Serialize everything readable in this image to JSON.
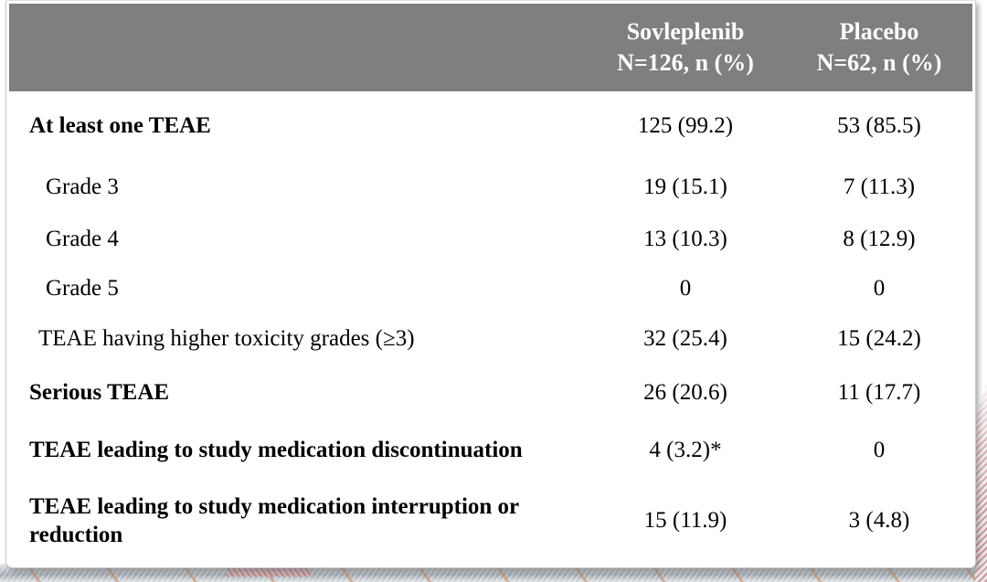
{
  "header": {
    "sovleplenib_line1": "Sovleplenib",
    "sovleplenib_line2": "N=126, n (%)",
    "placebo_line1": "Placebo",
    "placebo_line2": "N=62, n (%)"
  },
  "rows": [
    {
      "label": "At least one TEAE",
      "sovleplenib": "125 (99.2)",
      "placebo": "53 (85.5)"
    },
    {
      "label": "Grade 3",
      "sovleplenib": "19 (15.1)",
      "placebo": "7 (11.3)"
    },
    {
      "label": "Grade 4",
      "sovleplenib": "13 (10.3)",
      "placebo": "8 (12.9)"
    },
    {
      "label": "Grade 5",
      "sovleplenib": "0",
      "placebo": "0"
    },
    {
      "label": "TEAE having higher toxicity grades (≥3)",
      "sovleplenib": "32 (25.4)",
      "placebo": "15 (24.2)"
    },
    {
      "label": "Serious TEAE",
      "sovleplenib": "26 (20.6)",
      "placebo": "11 (17.7)"
    },
    {
      "label": "TEAE leading to study medication discontinuation",
      "sovleplenib": "4 (3.2)*",
      "placebo": "0"
    },
    {
      "label": "TEAE leading to study medication interruption or reduction",
      "sovleplenib": "15 (11.9)",
      "placebo": "3 (4.8)"
    }
  ],
  "colors": {
    "header_bg": "#7f7f7f",
    "header_text": "#ffffff",
    "body_text": "#000000",
    "card_border": "#c8c8c8",
    "ribbon_rose": "#c69ba0",
    "ribbon_gray": "#b6bcc4"
  }
}
